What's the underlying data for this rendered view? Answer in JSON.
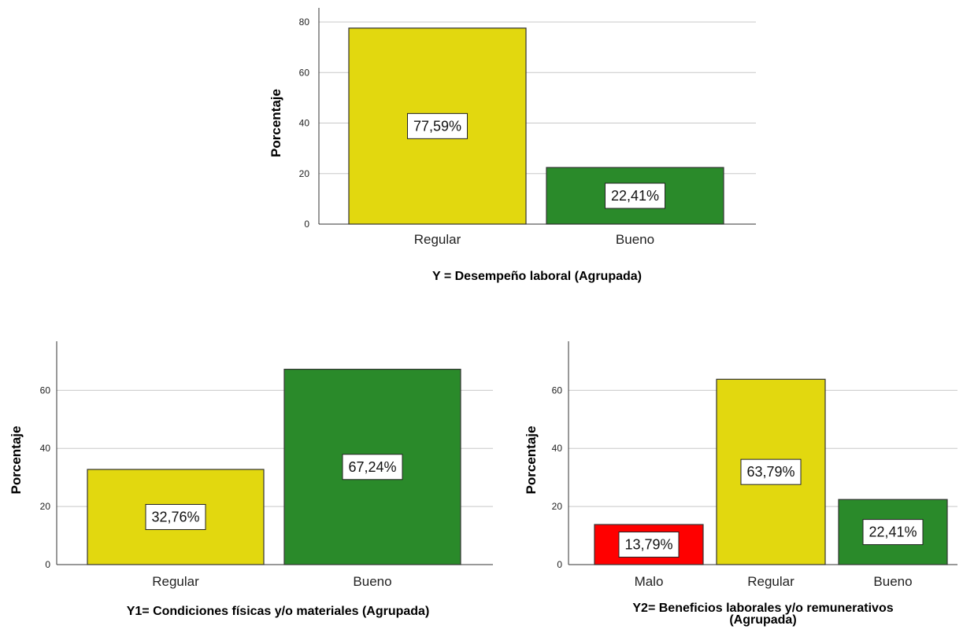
{
  "chart_data": [
    {
      "type": "bar",
      "ylabel": "Porcentaje",
      "xlabel": [
        "Y = Desempeño laboral (Agrupada)"
      ],
      "categories": [
        "Regular",
        "Bueno"
      ],
      "values": [
        77.59,
        22.41
      ],
      "data_labels": [
        "77,59%",
        "22,41%"
      ],
      "colors": [
        "#e2d80f",
        "#2a8a2a"
      ],
      "yticks": [
        0,
        20,
        40,
        60,
        80
      ],
      "ylim": [
        0,
        80
      ],
      "grid": true
    },
    {
      "type": "bar",
      "ylabel": "Porcentaje",
      "xlabel": [
        "Y1= Condiciones físicas y/o materiales (Agrupada)"
      ],
      "categories": [
        "Regular",
        "Bueno"
      ],
      "values": [
        32.76,
        67.24
      ],
      "data_labels": [
        "32,76%",
        "67,24%"
      ],
      "colors": [
        "#e2d80f",
        "#2a8a2a"
      ],
      "yticks": [
        0,
        20,
        40,
        60
      ],
      "ylim": [
        0,
        72
      ],
      "grid": true
    },
    {
      "type": "bar",
      "ylabel": "Porcentaje",
      "xlabel": [
        "Y2= Beneficios laborales y/o remunerativos",
        "(Agrupada)"
      ],
      "categories": [
        "Malo",
        "Regular",
        "Bueno"
      ],
      "values": [
        13.79,
        63.79,
        22.41
      ],
      "data_labels": [
        "13,79%",
        "63,79%",
        "22,41%"
      ],
      "colors": [
        "#ff0000",
        "#e2d80f",
        "#2a8a2a"
      ],
      "yticks": [
        0,
        20,
        40,
        60
      ],
      "ylim": [
        0,
        72
      ],
      "grid": true
    }
  ]
}
